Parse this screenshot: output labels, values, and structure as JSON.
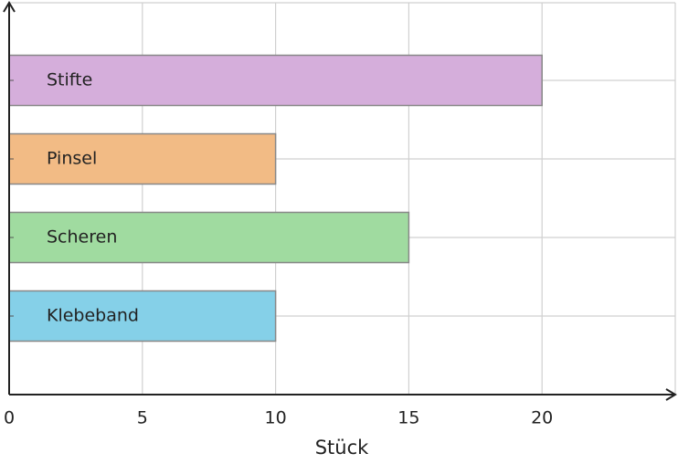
{
  "chart_data": {
    "type": "barh",
    "categories": [
      "Stifte",
      "Pinsel",
      "Scheren",
      "Klebeband"
    ],
    "values": [
      20,
      10,
      15,
      10
    ],
    "colors": [
      "#d5aedb",
      "#f2bb85",
      "#a0dba0",
      "#85d0e8"
    ],
    "xlabel": "Stück",
    "xlim": [
      0,
      25
    ],
    "xticks": [
      0,
      5,
      10,
      15,
      20
    ],
    "grid": true
  }
}
